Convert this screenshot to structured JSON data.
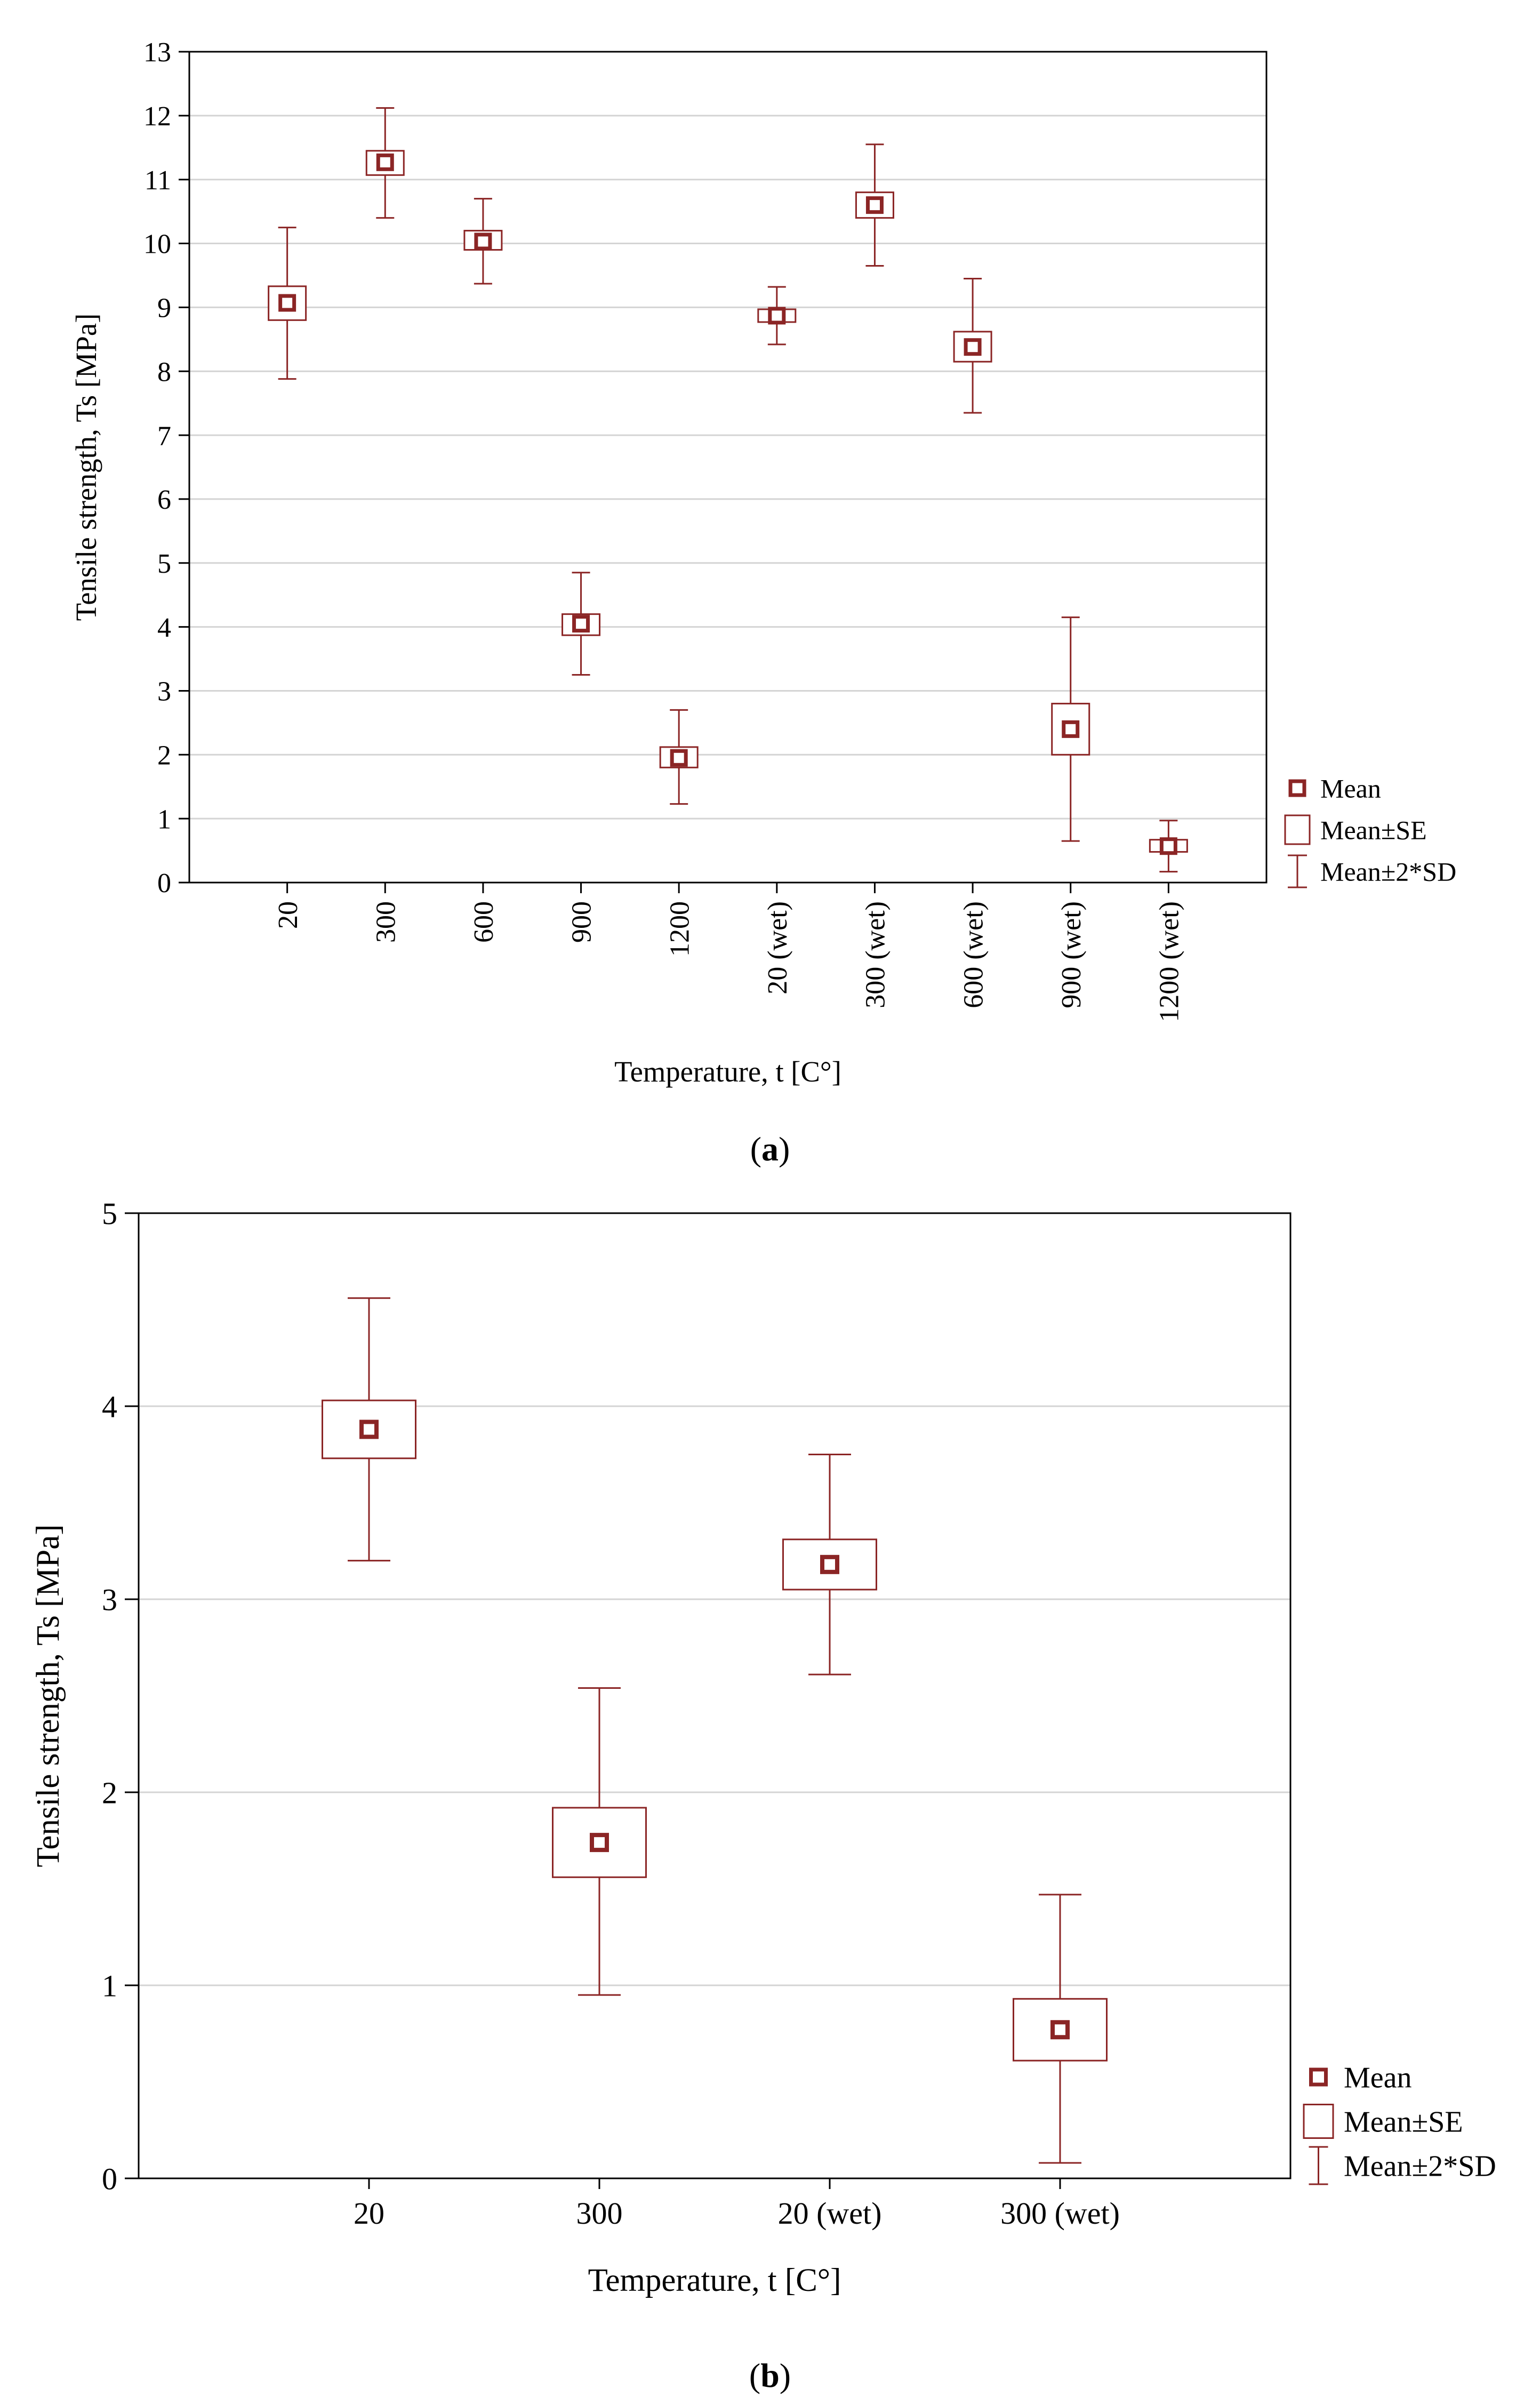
{
  "chart_data": [
    {
      "id": "a",
      "type": "box",
      "caption_letter": "a",
      "xlabel": "Temperature, t [C°]",
      "ylabel": "Tensile strength, Ts [MPa]",
      "ylim": [
        0,
        13
      ],
      "yticks": [
        "0",
        "1",
        "2",
        "3",
        "4",
        "5",
        "6",
        "7",
        "8",
        "9",
        "10",
        "11",
        "12",
        "13"
      ],
      "grid": true,
      "tick_rotation": "vertical",
      "categories": [
        "20",
        "300",
        "600",
        "900",
        "1200",
        "20 (wet)",
        "300 (wet)",
        "600 (wet)",
        "900 (wet)",
        "1200 (wet)"
      ],
      "mean": [
        9.07,
        11.27,
        10.03,
        4.05,
        1.95,
        8.87,
        10.6,
        8.38,
        2.4,
        0.57
      ],
      "se_low": [
        8.8,
        11.07,
        9.9,
        3.87,
        1.8,
        8.77,
        10.4,
        8.15,
        2.0,
        0.48
      ],
      "se_high": [
        9.33,
        11.45,
        10.2,
        4.2,
        2.12,
        8.97,
        10.8,
        8.62,
        2.8,
        0.67
      ],
      "sd2_low": [
        7.88,
        10.4,
        9.37,
        3.25,
        1.23,
        8.42,
        9.65,
        7.35,
        0.65,
        0.17
      ],
      "sd2_high": [
        10.25,
        12.12,
        10.7,
        4.85,
        2.7,
        9.32,
        11.55,
        9.45,
        4.15,
        0.97
      ],
      "legend": [
        "Mean",
        "Mean±SE",
        "Mean±2*SD"
      ],
      "legend_position": "right"
    },
    {
      "id": "b",
      "type": "box",
      "caption_letter": "b",
      "xlabel": "Temperature, t [C°]",
      "ylabel": "Tensile strength, Ts [MPa]",
      "ylim": [
        0,
        5
      ],
      "yticks": [
        "0",
        "1",
        "2",
        "3",
        "4",
        "5"
      ],
      "grid": true,
      "tick_rotation": "horizontal",
      "categories": [
        "20",
        "300",
        "20 (wet)",
        "300 (wet)"
      ],
      "mean": [
        3.88,
        1.74,
        3.18,
        0.77
      ],
      "se_low": [
        3.73,
        1.56,
        3.05,
        0.61
      ],
      "se_high": [
        4.03,
        1.92,
        3.31,
        0.93
      ],
      "sd2_low": [
        3.2,
        0.95,
        2.61,
        0.08
      ],
      "sd2_high": [
        4.56,
        2.54,
        3.75,
        1.47
      ],
      "legend": [
        "Mean",
        "Mean±SE",
        "Mean±2*SD"
      ],
      "legend_position": "right"
    }
  ],
  "colors": {
    "series": "#8b2525",
    "axis": "#000000",
    "grid": "#d4d4d4"
  }
}
